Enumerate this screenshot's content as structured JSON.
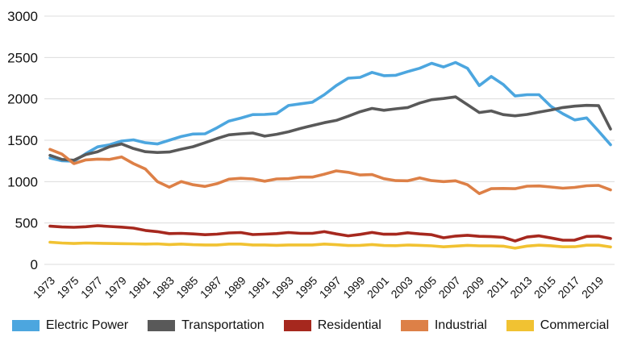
{
  "chart_data": {
    "type": "line",
    "title": "",
    "xlabel": "",
    "ylabel": "",
    "ylim": [
      0,
      3000
    ],
    "y_ticks": [
      0,
      500,
      1000,
      1500,
      2000,
      2500,
      3000
    ],
    "grid": "horizontal",
    "gridline_color": "#dcdcdc",
    "label_color": "#111111",
    "background": "#ffffff",
    "legend_position": "bottom",
    "x": [
      1973,
      1974,
      1975,
      1976,
      1977,
      1978,
      1979,
      1980,
      1981,
      1982,
      1983,
      1984,
      1985,
      1986,
      1987,
      1988,
      1989,
      1990,
      1991,
      1992,
      1993,
      1994,
      1995,
      1996,
      1997,
      1998,
      1999,
      2000,
      2001,
      2002,
      2003,
      2004,
      2005,
      2006,
      2007,
      2008,
      2009,
      2010,
      2011,
      2012,
      2013,
      2014,
      2015,
      2016,
      2017,
      2018,
      2019,
      2020
    ],
    "x_tick_labels": [
      "1973",
      "1975",
      "1977",
      "1979",
      "1981",
      "1983",
      "1985",
      "1987",
      "1989",
      "1991",
      "1993",
      "1995",
      "1997",
      "1999",
      "2001",
      "2003",
      "2005",
      "2007",
      "2009",
      "2011",
      "2013",
      "2015",
      "2017",
      "2019"
    ],
    "series": [
      {
        "name": "Electric Power",
        "color": "#4CA6DF",
        "values": [
          1285,
          1252,
          1246,
          1338,
          1420,
          1445,
          1490,
          1505,
          1470,
          1455,
          1500,
          1545,
          1575,
          1578,
          1650,
          1732,
          1768,
          1810,
          1812,
          1822,
          1920,
          1940,
          1960,
          2050,
          2160,
          2250,
          2260,
          2320,
          2280,
          2285,
          2330,
          2370,
          2430,
          2385,
          2440,
          2370,
          2160,
          2270,
          2175,
          2035,
          2050,
          2050,
          1910,
          1820,
          1745,
          1770,
          1610,
          1445
        ]
      },
      {
        "name": "Transportation",
        "color": "#595959",
        "values": [
          1318,
          1268,
          1258,
          1328,
          1362,
          1422,
          1455,
          1400,
          1362,
          1352,
          1358,
          1392,
          1422,
          1470,
          1520,
          1565,
          1578,
          1588,
          1550,
          1572,
          1602,
          1642,
          1678,
          1712,
          1740,
          1790,
          1845,
          1885,
          1862,
          1880,
          1895,
          1950,
          1990,
          2005,
          2025,
          1930,
          1835,
          1855,
          1810,
          1795,
          1812,
          1840,
          1865,
          1895,
          1912,
          1922,
          1918,
          1635
        ]
      },
      {
        "name": "Residential",
        "color": "#A6281E",
        "values": [
          462,
          452,
          448,
          455,
          468,
          458,
          450,
          438,
          410,
          395,
          372,
          375,
          368,
          358,
          365,
          380,
          385,
          360,
          365,
          372,
          385,
          375,
          375,
          395,
          368,
          345,
          362,
          386,
          364,
          364,
          382,
          368,
          358,
          321,
          342,
          352,
          339,
          335,
          326,
          282,
          330,
          345,
          319,
          292,
          293,
          338,
          341,
          313
        ]
      },
      {
        "name": "Industrial",
        "color": "#DD8047",
        "values": [
          1390,
          1332,
          1218,
          1262,
          1272,
          1268,
          1298,
          1218,
          1152,
          1000,
          932,
          1000,
          962,
          942,
          975,
          1030,
          1040,
          1032,
          1005,
          1032,
          1035,
          1055,
          1055,
          1090,
          1130,
          1112,
          1080,
          1085,
          1035,
          1012,
          1010,
          1045,
          1012,
          1000,
          1010,
          962,
          855,
          915,
          918,
          915,
          945,
          948,
          935,
          920,
          930,
          950,
          955,
          900
        ]
      },
      {
        "name": "Commercial",
        "color": "#F1C232",
        "values": [
          268,
          258,
          252,
          258,
          255,
          252,
          250,
          248,
          245,
          248,
          240,
          245,
          238,
          235,
          235,
          245,
          245,
          235,
          235,
          230,
          235,
          235,
          235,
          245,
          238,
          228,
          230,
          240,
          228,
          226,
          234,
          230,
          224,
          212,
          221,
          230,
          224,
          224,
          220,
          196,
          221,
          232,
          225,
          212,
          213,
          232,
          232,
          210
        ]
      }
    ]
  }
}
